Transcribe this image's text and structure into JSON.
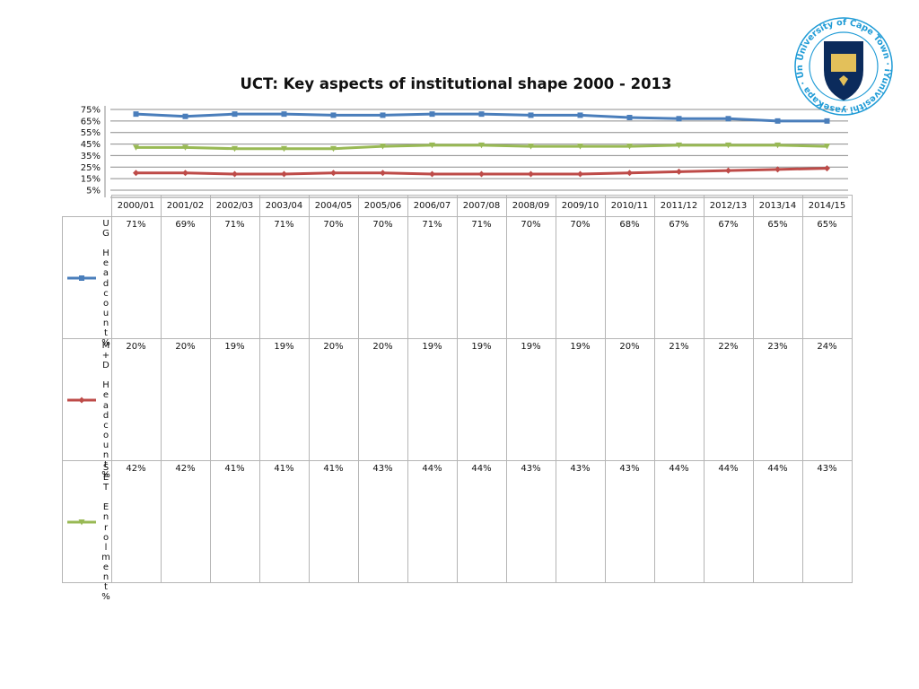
{
  "chart_data": {
    "type": "line",
    "title": "UCT: Key aspects of institutional shape 2000 - 2013",
    "categories": [
      "2000/01",
      "2001/02",
      "2002/03",
      "2003/04",
      "2004/05",
      "2005/06",
      "2006/07",
      "2007/08",
      "2008/09",
      "2009/10",
      "2010/11",
      "2011/12",
      "2012/13",
      "2013/14",
      "2014/15"
    ],
    "y_ticks": [
      "75%",
      "65%",
      "55%",
      "45%",
      "35%",
      "25%",
      "15%",
      "5%"
    ],
    "ylim": [
      5,
      75
    ],
    "grid": true,
    "legend_placement": "table rows",
    "series": [
      {
        "name": "UG Headcount%",
        "color": "#4a7ebb",
        "marker": "square",
        "values": [
          71,
          69,
          71,
          71,
          70,
          70,
          71,
          71,
          70,
          70,
          68,
          67,
          67,
          65,
          65
        ]
      },
      {
        "name": "M+D Headcount%",
        "color": "#be4b48",
        "marker": "diamond",
        "values": [
          20,
          20,
          19,
          19,
          20,
          20,
          19,
          19,
          19,
          19,
          20,
          21,
          22,
          23,
          24
        ]
      },
      {
        "name": "SET Enrolment%",
        "color": "#98b954",
        "marker": "triangle",
        "values": [
          42,
          42,
          41,
          41,
          41,
          43,
          44,
          44,
          43,
          43,
          43,
          44,
          44,
          44,
          43
        ]
      }
    ],
    "value_suffix": "%"
  },
  "logo": {
    "ring_text": "University of Cape Town · iYunivesithi yaseKapa · Universiteit van Kaapstad ·",
    "colors": {
      "ring": "#1f9bd6",
      "shield": "#0b2b5c",
      "gold": "#e3c05a"
    }
  }
}
